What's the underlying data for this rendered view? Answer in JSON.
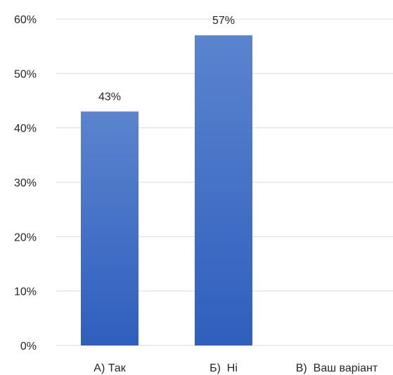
{
  "chart_data": {
    "type": "bar",
    "categories": [
      "А) Так",
      "Б)  Ні",
      "В)  Ваш варіант"
    ],
    "values": [
      43,
      57,
      0
    ],
    "data_labels": [
      "43%",
      "57%",
      ""
    ],
    "ylim": [
      0,
      60
    ],
    "yticks": [
      0,
      10,
      20,
      30,
      40,
      50,
      60
    ],
    "ytick_labels": [
      "0%",
      "10%",
      "20%",
      "30%",
      "40%",
      "50%",
      "60%"
    ],
    "grid": true,
    "legend": "none",
    "bar_color_top": "#5b84cf",
    "bar_color_bottom": "#2f5fbe",
    "title": "",
    "xlabel": "",
    "ylabel": ""
  }
}
